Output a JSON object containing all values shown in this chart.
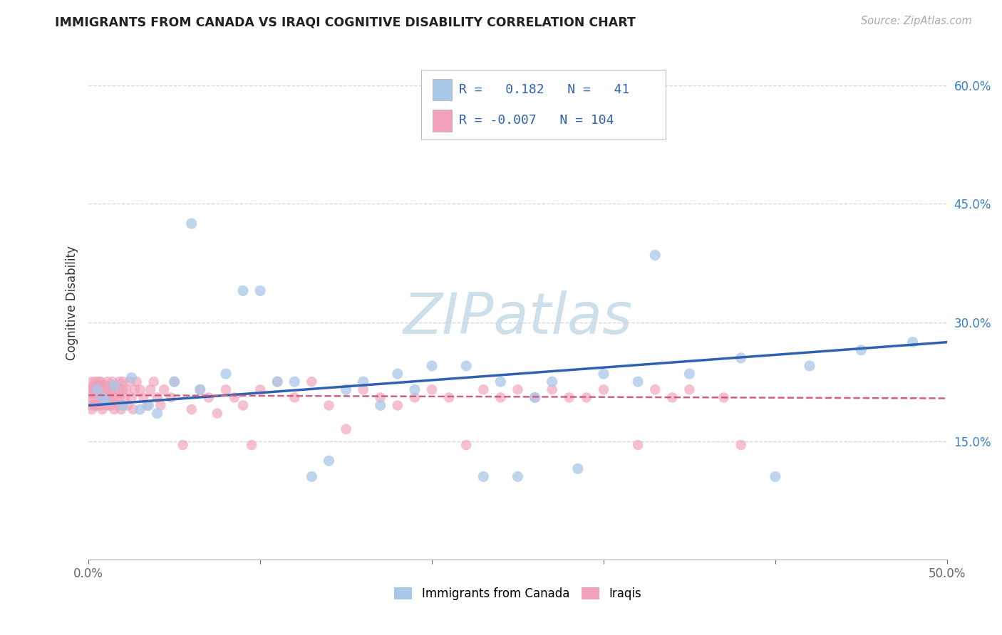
{
  "title": "IMMIGRANTS FROM CANADA VS IRAQI COGNITIVE DISABILITY CORRELATION CHART",
  "source": "Source: ZipAtlas.com",
  "ylabel": "Cognitive Disability",
  "xlim": [
    0.0,
    0.5
  ],
  "ylim": [
    0.0,
    0.65
  ],
  "xticks": [
    0.0,
    0.1,
    0.2,
    0.3,
    0.4,
    0.5
  ],
  "xticklabels": [
    "0.0%",
    "",
    "",
    "",
    "",
    "50.0%"
  ],
  "yticks": [
    0.15,
    0.3,
    0.45,
    0.6
  ],
  "yticklabels": [
    "15.0%",
    "30.0%",
    "45.0%",
    "60.0%"
  ],
  "legend_R1": "0.182",
  "legend_N1": "41",
  "legend_R2": "-0.007",
  "legend_N2": "104",
  "color_blue": "#a8c8e8",
  "color_pink": "#f0a0b8",
  "color_blue_line": "#3060b0",
  "color_pink_line": "#d06080",
  "watermark": "ZIPatlas",
  "canada_x": [
    0.005,
    0.008,
    0.01,
    0.015,
    0.02,
    0.025,
    0.03,
    0.035,
    0.04,
    0.05,
    0.06,
    0.065,
    0.08,
    0.09,
    0.1,
    0.11,
    0.12,
    0.14,
    0.16,
    0.18,
    0.2,
    0.22,
    0.24,
    0.26,
    0.27,
    0.3,
    0.32,
    0.35,
    0.38,
    0.42,
    0.45,
    0.48,
    0.13,
    0.15,
    0.25,
    0.17,
    0.19,
    0.23,
    0.285,
    0.33,
    0.4
  ],
  "canada_y": [
    0.215,
    0.205,
    0.2,
    0.22,
    0.195,
    0.23,
    0.19,
    0.195,
    0.185,
    0.225,
    0.425,
    0.215,
    0.235,
    0.34,
    0.34,
    0.225,
    0.225,
    0.125,
    0.225,
    0.235,
    0.245,
    0.245,
    0.225,
    0.205,
    0.225,
    0.235,
    0.225,
    0.235,
    0.255,
    0.245,
    0.265,
    0.275,
    0.105,
    0.215,
    0.105,
    0.195,
    0.215,
    0.105,
    0.115,
    0.385,
    0.105
  ],
  "iraqi_x": [
    0.001,
    0.001,
    0.001,
    0.002,
    0.002,
    0.002,
    0.003,
    0.003,
    0.003,
    0.003,
    0.004,
    0.004,
    0.004,
    0.005,
    0.005,
    0.005,
    0.005,
    0.006,
    0.006,
    0.006,
    0.007,
    0.007,
    0.007,
    0.008,
    0.008,
    0.008,
    0.009,
    0.009,
    0.01,
    0.01,
    0.01,
    0.011,
    0.011,
    0.012,
    0.012,
    0.013,
    0.013,
    0.014,
    0.014,
    0.015,
    0.015,
    0.016,
    0.016,
    0.017,
    0.017,
    0.018,
    0.018,
    0.019,
    0.02,
    0.02,
    0.021,
    0.022,
    0.023,
    0.024,
    0.025,
    0.026,
    0.027,
    0.028,
    0.03,
    0.032,
    0.034,
    0.036,
    0.038,
    0.04,
    0.042,
    0.044,
    0.048,
    0.05,
    0.055,
    0.06,
    0.065,
    0.07,
    0.075,
    0.08,
    0.085,
    0.09,
    0.095,
    0.1,
    0.11,
    0.12,
    0.13,
    0.14,
    0.15,
    0.16,
    0.17,
    0.18,
    0.19,
    0.2,
    0.21,
    0.22,
    0.23,
    0.24,
    0.25,
    0.26,
    0.27,
    0.28,
    0.29,
    0.3,
    0.32,
    0.33,
    0.34,
    0.35,
    0.37,
    0.38
  ],
  "iraqi_y": [
    0.215,
    0.2,
    0.195,
    0.225,
    0.21,
    0.19,
    0.22,
    0.205,
    0.215,
    0.195,
    0.225,
    0.21,
    0.195,
    0.22,
    0.205,
    0.215,
    0.195,
    0.225,
    0.21,
    0.2,
    0.215,
    0.195,
    0.225,
    0.21,
    0.19,
    0.22,
    0.205,
    0.215,
    0.22,
    0.205,
    0.195,
    0.215,
    0.225,
    0.205,
    0.195,
    0.215,
    0.195,
    0.225,
    0.205,
    0.215,
    0.19,
    0.22,
    0.205,
    0.215,
    0.195,
    0.225,
    0.205,
    0.19,
    0.215,
    0.225,
    0.205,
    0.215,
    0.195,
    0.225,
    0.205,
    0.19,
    0.215,
    0.225,
    0.215,
    0.205,
    0.195,
    0.215,
    0.225,
    0.205,
    0.195,
    0.215,
    0.205,
    0.225,
    0.145,
    0.19,
    0.215,
    0.205,
    0.185,
    0.215,
    0.205,
    0.195,
    0.145,
    0.215,
    0.225,
    0.205,
    0.225,
    0.195,
    0.165,
    0.215,
    0.205,
    0.195,
    0.205,
    0.215,
    0.205,
    0.145,
    0.215,
    0.205,
    0.215,
    0.205,
    0.215,
    0.205,
    0.205,
    0.215,
    0.145,
    0.215,
    0.205,
    0.215,
    0.205,
    0.145
  ],
  "blue_line_x": [
    0.0,
    0.5
  ],
  "blue_line_y": [
    0.195,
    0.275
  ],
  "pink_line_x": [
    0.0,
    0.5
  ],
  "pink_line_y": [
    0.208,
    0.204
  ]
}
